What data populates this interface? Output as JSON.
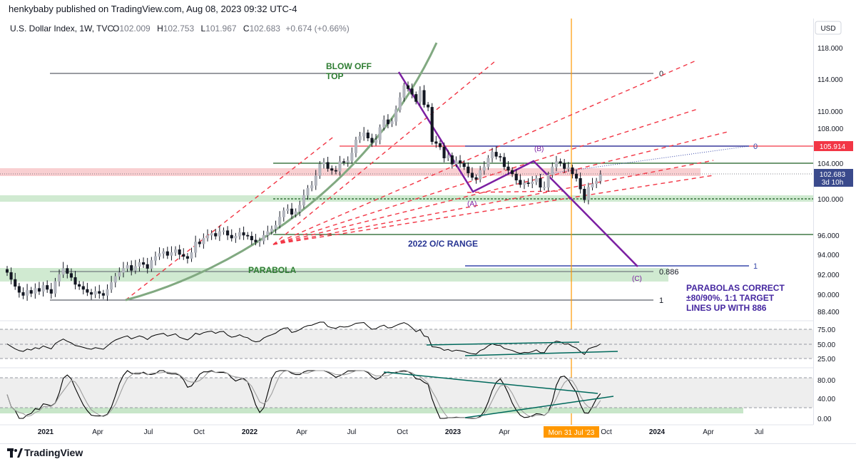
{
  "header": {
    "publisher": "henkybaby published on TradingView.com, Aug 08, 2023 09:32 UTC-4"
  },
  "legend": {
    "symbol": "U.S. Dollar Index, 1W, TVC",
    "open_label": "O",
    "open": "102.009",
    "high_label": "H",
    "high": "102.753",
    "low_label": "L",
    "low": "101.967",
    "close_label": "C",
    "close": "102.683",
    "change": "+0.674 (+0.66%)"
  },
  "currency": "USD",
  "price_badges": {
    "current": "102.683",
    "countdown": "3d 10h",
    "level": "105.914"
  },
  "cursor_date": "Mon 31 Jul '23",
  "footer": {
    "brand": "TradingView"
  },
  "colors": {
    "up": "#b2b5be",
    "down": "#131722",
    "green_line": "#1b5e20",
    "red_dash": "#f23645",
    "purple": "#7b1fa2",
    "blue": "#3949ab",
    "parabola": "#81a981",
    "orange": "#ff9800",
    "pink_zone": "#f8c7c9",
    "green_zone": "#c8e6c9",
    "osc_line": "#000000"
  },
  "chart_data": {
    "type": "candlestick",
    "y_axis": {
      "unit": "USD",
      "ticks": [
        "118.000",
        "114.000",
        "110.000",
        "108.000",
        "106.000",
        "104.000",
        "100.000",
        "96.000",
        "94.000",
        "92.000",
        "90.000",
        "88.400"
      ],
      "range": [
        86.4,
        119.5
      ]
    },
    "x_axis": {
      "ticks": [
        "2021",
        "Apr",
        "Jul",
        "Oct",
        "2022",
        "Apr",
        "Jul",
        "Oct",
        "2023",
        "Apr",
        "Jul",
        "Oct",
        "2024",
        "Apr",
        "Jul"
      ]
    },
    "series": [
      {
        "close": [
          92.2,
          91.5,
          90.8,
          90.2,
          89.9,
          90.4,
          90.1,
          90.6,
          90.3,
          90.9,
          90.5,
          90.1,
          91.3,
          92.0,
          92.6,
          92.1,
          91.7,
          91.0,
          90.8,
          90.5,
          90.2,
          90.0,
          90.3,
          90.1,
          89.9,
          90.5,
          91.2,
          91.8,
          92.2,
          92.6,
          92.9,
          92.4,
          92.8,
          93.2,
          93.0,
          92.6,
          93.4,
          93.8,
          94.1,
          94.3,
          93.9,
          94.2,
          94.5,
          94.0,
          93.8,
          93.6,
          94.2,
          95.3,
          95.1,
          95.7,
          96.0,
          96.2,
          95.9,
          96.4,
          96.5,
          96.0,
          95.7,
          95.9,
          96.3,
          96.0,
          95.9,
          95.5,
          95.3,
          95.4,
          96.0,
          96.4,
          96.7,
          97.1,
          98.0,
          98.7,
          98.9,
          98.3,
          98.6,
          99.3,
          100.4,
          101.2,
          101.5,
          102.6,
          103.9,
          104.1,
          103.4,
          103.2,
          103.1,
          104.2,
          104.1,
          104.3,
          105.2,
          106.7,
          107.1,
          107.5,
          106.9,
          106.4,
          106.7,
          108.1,
          109.0,
          108.5,
          108.8,
          110.2,
          111.7,
          113.2,
          112.8,
          112.1,
          111.2,
          112.6,
          110.8,
          110.5,
          106.5,
          106.3,
          105.9,
          104.6,
          104.9,
          103.9,
          104.3,
          104.0,
          103.6,
          102.9,
          102.4,
          102.2,
          103.2,
          103.6,
          104.6,
          105.3,
          104.8,
          104.7,
          103.6,
          103.2,
          102.8,
          102.1,
          101.6,
          101.8,
          101.7,
          101.9,
          102.3,
          101.3,
          101.3,
          102.7,
          103.6,
          104.2,
          104.0,
          103.4,
          103.5,
          102.8,
          102.3,
          101.1,
          99.9,
          101.3,
          101.7,
          102.0,
          102.7
        ]
      },
      {
        "name": "",
        "values_rsi": []
      },
      {
        "name": "",
        "values_stoch": []
      }
    ],
    "rsi_axis": {
      "ticks": [
        "75.00",
        "50.00",
        "25.00"
      ]
    },
    "stoch_axis": {
      "ticks": [
        "80.00",
        "40.00",
        "0.00"
      ]
    },
    "levels": [
      {
        "value": 105.914,
        "label": "105.914"
      },
      {
        "value": 102.683,
        "label": "102.683"
      }
    ],
    "fib_labels": {
      "top": "0",
      "mid": "0.886",
      "bottom": "1",
      "right_top": "0",
      "right_bottom": "1"
    },
    "annotations": {
      "blow_off_1": "BLOW OFF",
      "blow_off_2": "TOP",
      "parabola": "PARABOLA",
      "range": "2022 O/C RANGE",
      "wave_a": "(A)",
      "wave_b": "(B)",
      "wave_c": "(C)",
      "note_1": "PARABOLAS CORRECT",
      "note_2": "±80/90%. 1:1 TARGET",
      "note_3": "LINES UP WITH 886"
    }
  }
}
